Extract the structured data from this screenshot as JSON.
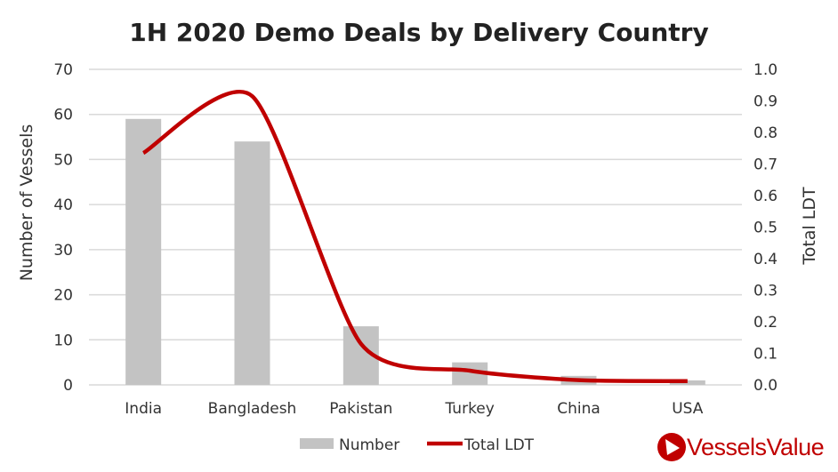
{
  "chart_data": {
    "type": "bar+line",
    "title": "1H 2020 Demo Deals by Delivery Country",
    "categories": [
      "India",
      "Bangladesh",
      "Pakistan",
      "Turkey",
      "China",
      "USA"
    ],
    "series": [
      {
        "name": "Number",
        "type": "bar",
        "axis": "left",
        "color": "#c3c3c3",
        "values": [
          59,
          54,
          13,
          5,
          2,
          1
        ]
      },
      {
        "name": "Total LDT",
        "type": "line",
        "axis": "right",
        "color": "#c00000",
        "values": [
          0.735,
          0.915,
          0.13,
          0.045,
          0.015,
          0.012
        ]
      }
    ],
    "ylabel": "Number of Vessels",
    "y2label": "Total LDT",
    "ylim": [
      0,
      70
    ],
    "y2lim": [
      0,
      1.0
    ],
    "yticks": [
      "0",
      "10",
      "20",
      "30",
      "40",
      "50",
      "60",
      "70"
    ],
    "y2ticks": [
      "0.0",
      "0.1",
      "0.2",
      "0.3",
      "0.4",
      "0.5",
      "0.6",
      "0.7",
      "0.8",
      "0.9",
      "1.0"
    ],
    "grid": true,
    "legend": "bottom"
  },
  "brand": {
    "name": "VesselsValue",
    "color": "#c00000"
  }
}
